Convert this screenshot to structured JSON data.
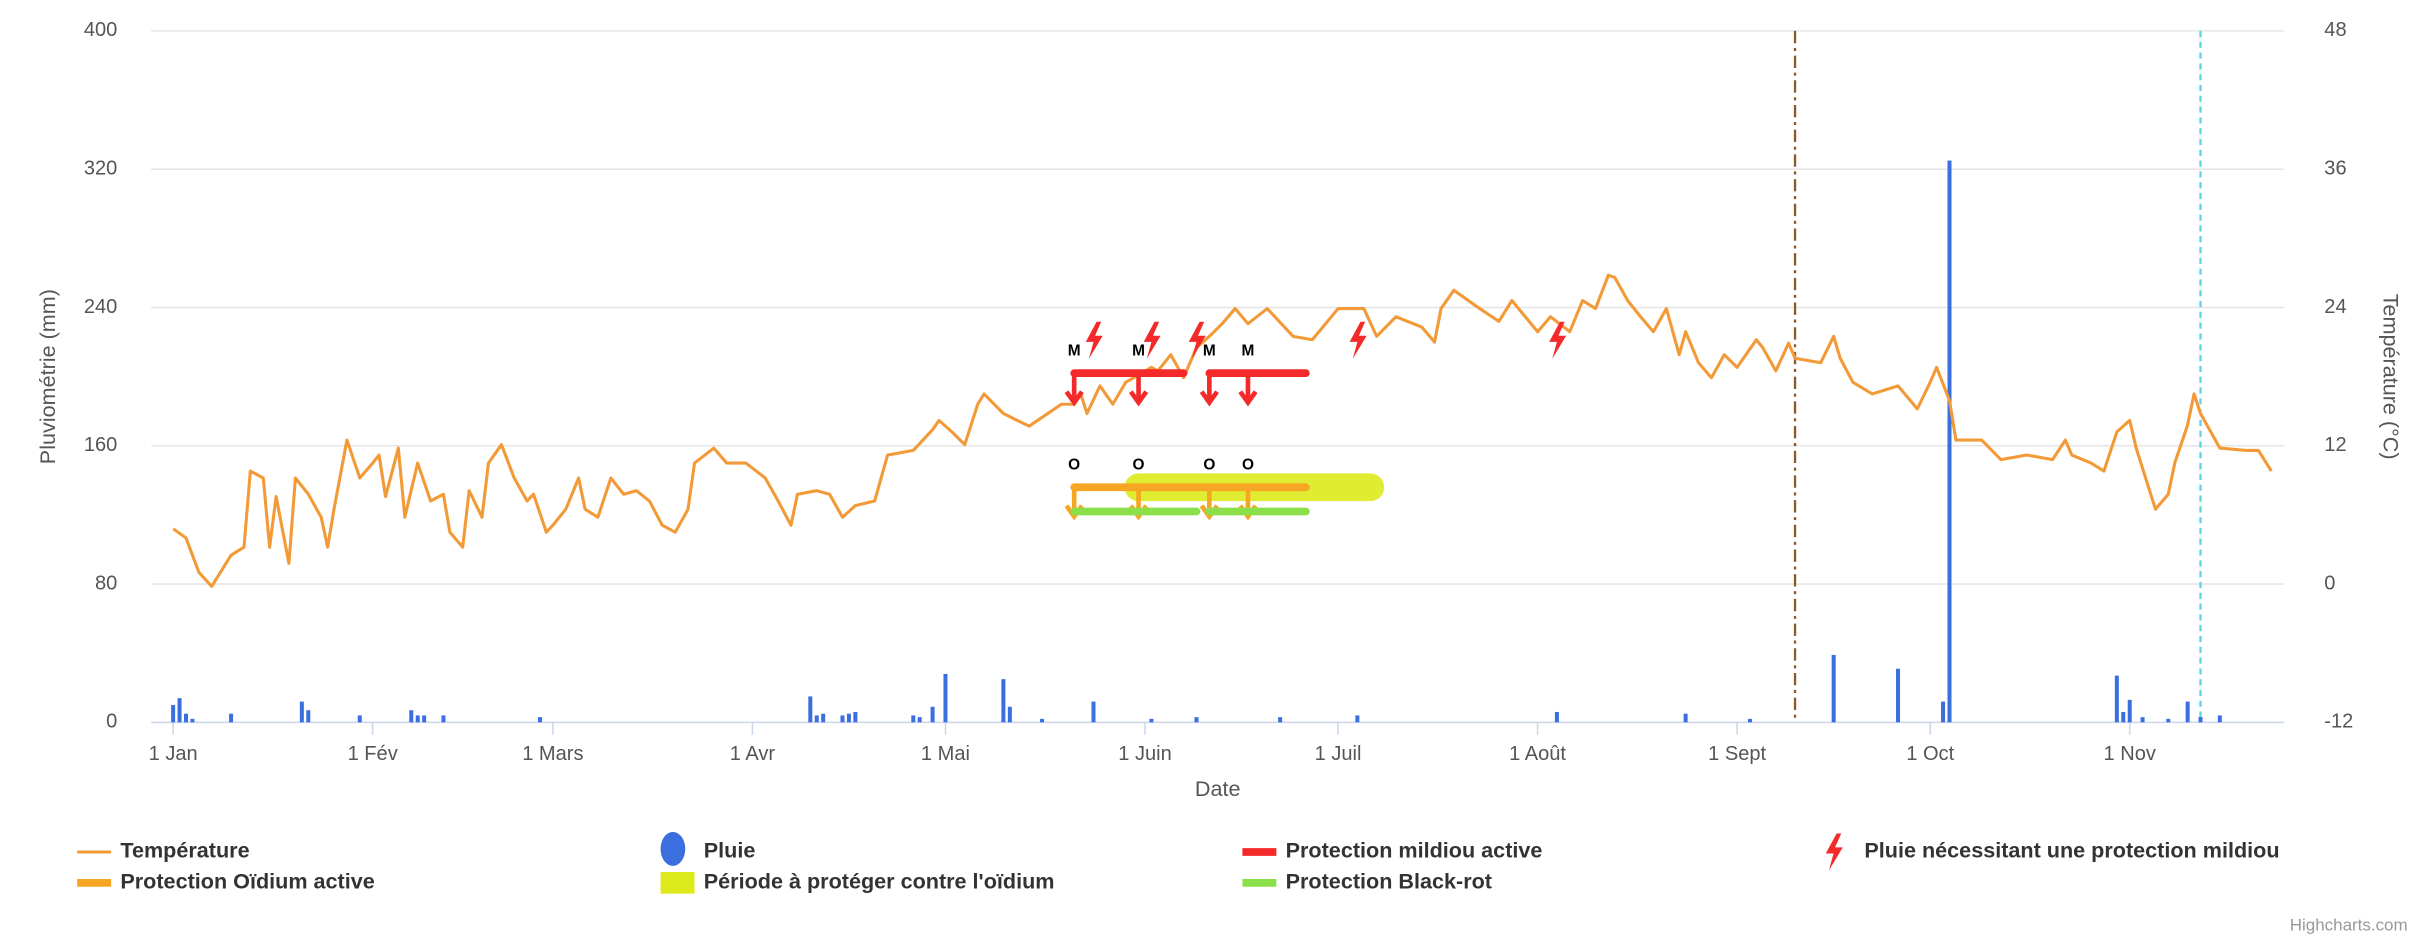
{
  "chart_data": {
    "type": "combo",
    "xlabel": "Date",
    "ylabel": "Pluviométrie (mm)",
    "y2label": "Température (°C)",
    "credit": "Highcharts.com",
    "xlim": [
      -3.4,
      328
    ],
    "xticks": [
      {
        "value": 0,
        "label": "1 Jan"
      },
      {
        "value": 31,
        "label": "1 Fév"
      },
      {
        "value": 59,
        "label": "1 Mars"
      },
      {
        "value": 90,
        "label": "1 Avr"
      },
      {
        "value": 120,
        "label": "1 Mai"
      },
      {
        "value": 151,
        "label": "1 Juin"
      },
      {
        "value": 181,
        "label": "1 Juil"
      },
      {
        "value": 212,
        "label": "1 Août"
      },
      {
        "value": 243,
        "label": "1 Sept"
      },
      {
        "value": 273,
        "label": "1 Oct"
      },
      {
        "value": 304,
        "label": "1 Nov"
      }
    ],
    "ylim": [
      0,
      400
    ],
    "yticks": [
      0,
      80,
      160,
      240,
      320,
      400
    ],
    "y2lim": [
      -12,
      48
    ],
    "y2ticks": [
      -12,
      0,
      12,
      24,
      36,
      48
    ],
    "grid": true,
    "plot_lines": [
      {
        "value": 252,
        "color": "#8b5a2b",
        "style": "dashdot"
      },
      {
        "value": 315,
        "color": "#5fd3e8",
        "style": "dash"
      }
    ],
    "series": [
      {
        "name": "Température",
        "type": "line",
        "axis": "y2",
        "color": "#f39a38",
        "x": [
          0,
          2,
          4,
          6,
          9,
          11,
          12,
          14,
          15,
          16,
          18,
          19,
          21,
          23,
          24,
          25,
          27,
          29,
          31,
          32,
          33,
          35,
          36,
          38,
          40,
          42,
          43,
          45,
          46,
          48,
          49,
          51,
          53,
          55,
          56,
          58,
          59,
          61,
          63,
          64,
          66,
          68,
          70,
          72,
          74,
          76,
          78,
          80,
          81,
          84,
          86,
          89,
          92,
          94,
          96,
          97,
          100,
          102,
          104,
          106,
          109,
          111,
          115,
          118,
          119,
          121,
          123,
          125,
          126,
          129,
          133,
          138,
          140,
          141,
          142,
          144,
          146,
          148,
          152,
          153,
          155,
          157,
          159,
          161,
          163,
          165,
          167,
          170,
          174,
          177,
          181,
          185,
          187,
          190,
          194,
          196,
          197,
          199,
          203,
          206,
          208,
          212,
          214,
          217,
          219,
          221,
          223,
          224,
          226,
          228,
          230,
          232,
          234,
          235,
          237,
          239,
          241,
          243,
          246,
          247,
          249,
          251,
          252,
          256,
          258,
          259,
          261,
          264,
          268,
          271,
          273,
          274,
          276,
          277,
          281,
          284,
          288,
          292,
          294,
          295,
          298,
          300,
          302,
          304,
          305,
          308,
          310,
          311,
          313,
          314,
          315,
          318,
          322,
          324,
          326
        ],
        "values": [
          4.8,
          4,
          1,
          -0.2,
          2.5,
          3.2,
          9.8,
          9.2,
          3.2,
          7.6,
          1.8,
          9.2,
          7.8,
          5.8,
          3.2,
          6.5,
          12.5,
          9.2,
          10.5,
          11.2,
          7.6,
          11.8,
          5.8,
          10.5,
          7.2,
          7.8,
          4.5,
          3.2,
          8.1,
          5.8,
          10.5,
          12.1,
          9.2,
          7.2,
          7.8,
          4.5,
          5.1,
          6.5,
          9.2,
          6.5,
          5.8,
          9.2,
          7.8,
          8.1,
          7.2,
          5.1,
          4.5,
          6.5,
          10.5,
          11.8,
          10.5,
          10.5,
          9.2,
          7.2,
          5.1,
          7.8,
          8.1,
          7.8,
          5.8,
          6.8,
          7.2,
          11.2,
          11.6,
          13.4,
          14.2,
          13.2,
          12.1,
          15.6,
          16.5,
          14.8,
          13.7,
          15.6,
          15.6,
          16.5,
          14.8,
          17.2,
          15.6,
          17.5,
          18.8,
          18.5,
          19.9,
          17.9,
          20.5,
          21.5,
          22.6,
          23.9,
          22.6,
          23.9,
          21.5,
          21.2,
          23.9,
          23.9,
          21.5,
          23.2,
          22.3,
          21,
          23.9,
          25.5,
          23.9,
          22.8,
          24.6,
          21.9,
          23.2,
          21.9,
          24.6,
          23.9,
          26.8,
          26.6,
          24.6,
          23.2,
          21.9,
          23.9,
          19.9,
          21.9,
          19.2,
          17.9,
          19.9,
          18.8,
          21.2,
          20.5,
          18.5,
          20.9,
          19.6,
          19.2,
          21.5,
          19.6,
          17.5,
          16.5,
          17.2,
          15.2,
          17.5,
          18.8,
          15.9,
          12.5,
          12.5,
          10.8,
          11.2,
          10.8,
          12.5,
          11.2,
          10.5,
          9.8,
          13.2,
          14.2,
          11.8,
          6.5,
          7.8,
          10.5,
          13.8,
          16.5,
          14.8,
          11.8,
          11.6,
          11.6,
          9.8
        ]
      },
      {
        "name": "Pluie",
        "type": "column",
        "color": "#3b6fe0",
        "x": [
          0,
          1,
          2,
          3,
          9,
          20,
          21,
          29,
          37,
          38,
          39,
          42,
          57,
          99,
          100,
          101,
          104,
          105,
          106,
          115,
          116,
          118,
          120,
          129,
          130,
          135,
          143,
          152,
          159,
          172,
          184,
          215,
          235,
          245,
          258,
          268,
          275,
          276,
          302,
          303,
          304,
          306,
          310,
          313,
          315,
          318
        ],
        "values": [
          10,
          14,
          5,
          2,
          5,
          12,
          7,
          4,
          7,
          4,
          4,
          4,
          3,
          15,
          4,
          5,
          4,
          5,
          6,
          4,
          3,
          9,
          28,
          25,
          9,
          2,
          12,
          2,
          3,
          3,
          4,
          6,
          5,
          2,
          39,
          31,
          12,
          325,
          27,
          6,
          13,
          3,
          2,
          12,
          3,
          4
        ]
      },
      {
        "name": "Protection mildiou active",
        "type": "segments",
        "color": "#f42a2a",
        "y": 202,
        "segments": [
          [
            140,
            157
          ],
          [
            161,
            176
          ]
        ],
        "markers": [
          140,
          150,
          161,
          167
        ],
        "marker_label": "M"
      },
      {
        "name": "Pluie nécessitant une protection mildiou",
        "type": "icon",
        "color": "#f42a2a",
        "y": 221,
        "x": [
          143,
          152,
          159,
          184,
          215
        ]
      },
      {
        "name": "Protection Oïdium active",
        "type": "segments",
        "color": "#f6a623",
        "y": 136,
        "segments": [
          [
            140,
            176
          ]
        ],
        "markers": [
          140,
          150,
          161,
          167
        ],
        "marker_label": "O"
      },
      {
        "name": "Période à protéger contre l'oïdium",
        "type": "band",
        "color": "#dcea1c",
        "y": 136,
        "segments": [
          [
            150,
            186
          ]
        ]
      },
      {
        "name": "Protection Black-rot",
        "type": "segments",
        "color": "#8be04a",
        "y": 122,
        "segments": [
          [
            140,
            159
          ],
          [
            161,
            176
          ]
        ]
      }
    ]
  }
}
